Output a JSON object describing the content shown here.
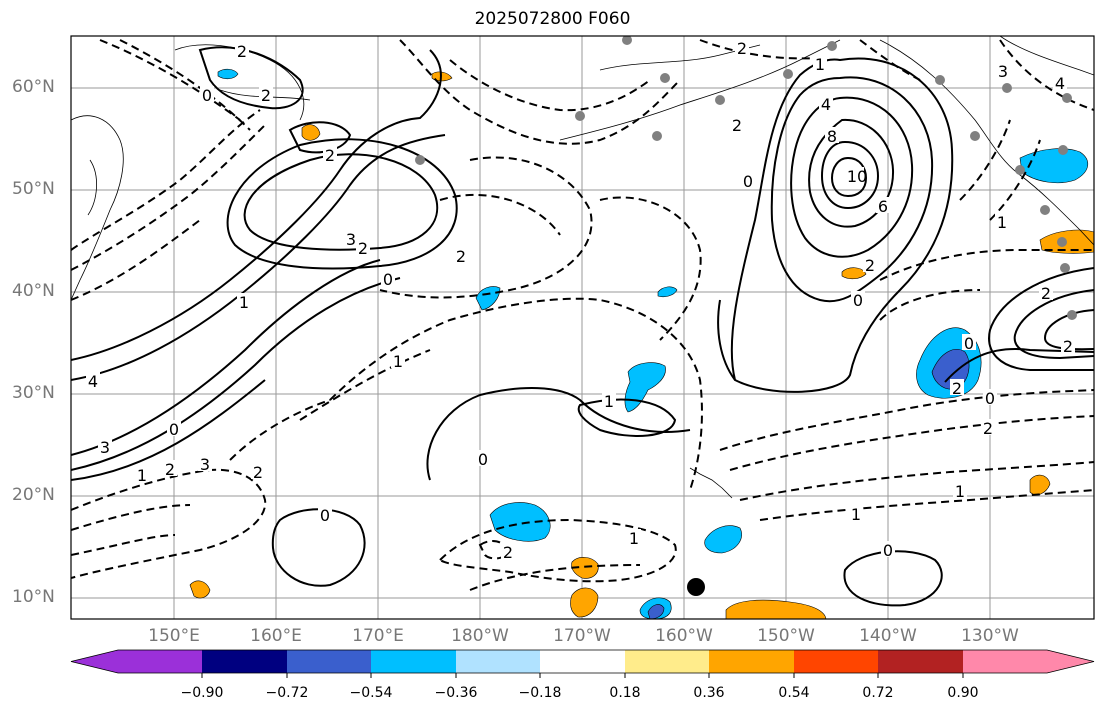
{
  "title": "2025072800 F060",
  "lat_labels": [
    "60°N",
    "50°N",
    "40°N",
    "30°N",
    "20°N",
    "10°N"
  ],
  "lon_labels": [
    "150°E",
    "160°E",
    "170°E",
    "180°W",
    "170°W",
    "160°W",
    "150°W",
    "140°W",
    "130°W"
  ],
  "colorbar": {
    "ticks": [
      "−0.90",
      "−0.72",
      "−0.54",
      "−0.36",
      "−0.18",
      "0.18",
      "0.36",
      "0.54",
      "0.72",
      "0.90"
    ],
    "colors": [
      "#9b30d9",
      "#000080",
      "#3a5fcd",
      "#00bfff",
      "#b0e2ff",
      "#ffffff",
      "#ffec8b",
      "#ffa500",
      "#ff4500",
      "#b22222",
      "#ff88aa"
    ]
  },
  "contour_labels": [
    {
      "t": "2"
    },
    {
      "t": "0"
    },
    {
      "t": "2"
    },
    {
      "t": "2"
    },
    {
      "t": "3"
    },
    {
      "t": "2"
    },
    {
      "t": "1"
    },
    {
      "t": "4"
    },
    {
      "t": "8"
    },
    {
      "t": "10"
    },
    {
      "t": "6"
    },
    {
      "t": "0"
    },
    {
      "t": "1"
    },
    {
      "t": "2"
    },
    {
      "t": "4"
    },
    {
      "t": "0"
    },
    {
      "t": "2"
    },
    {
      "t": "2"
    },
    {
      "t": "4"
    },
    {
      "t": "3"
    },
    {
      "t": "0"
    },
    {
      "t": "2"
    },
    {
      "t": "1"
    },
    {
      "t": "3"
    },
    {
      "t": "2"
    },
    {
      "t": "1"
    },
    {
      "t": "0"
    },
    {
      "t": "2"
    },
    {
      "t": "0"
    },
    {
      "t": "0"
    },
    {
      "t": "0"
    },
    {
      "t": "1"
    },
    {
      "t": "1"
    },
    {
      "t": "1"
    },
    {
      "t": "0"
    },
    {
      "t": "2"
    },
    {
      "t": "1"
    },
    {
      "t": "2"
    },
    {
      "t": "0"
    },
    {
      "t": "2"
    },
    {
      "t": "3"
    },
    {
      "t": "2"
    },
    {
      "t": "1"
    },
    {
      "t": "2"
    }
  ]
}
